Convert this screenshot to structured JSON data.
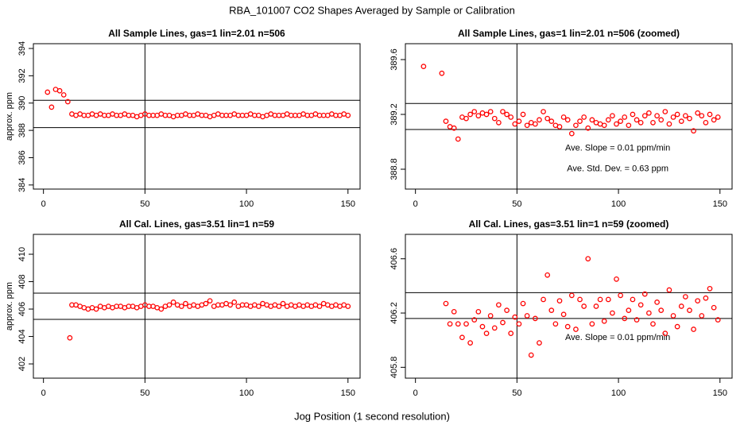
{
  "title": "RBA_101007  CO2 Shapes Averaged by Sample or Calibration",
  "xlabel": "Jog Position (1 second resolution)",
  "chart_data": [
    {
      "type": "scatter",
      "title": "All Sample Lines, gas=1 lin=2.01 n=506",
      "ylabel": "approx. ppm",
      "color": "#ff0000",
      "xlim": [
        -4.96,
        155.96
      ],
      "xticks": [
        0,
        50,
        100,
        150
      ],
      "ylim": [
        383.7,
        394.35
      ],
      "yticks": [
        384,
        386,
        388,
        390,
        392,
        394
      ],
      "hlines": [
        390.2,
        388.2
      ],
      "vline": 50,
      "x": [
        2,
        4,
        6,
        8,
        10,
        12,
        14,
        16,
        18,
        20,
        22,
        24,
        26,
        28,
        30,
        32,
        34,
        36,
        38,
        40,
        42,
        44,
        46,
        48,
        50,
        52,
        54,
        56,
        58,
        60,
        62,
        64,
        66,
        68,
        70,
        72,
        74,
        76,
        78,
        80,
        82,
        84,
        86,
        88,
        90,
        92,
        94,
        96,
        98,
        100,
        102,
        104,
        106,
        108,
        110,
        112,
        114,
        116,
        118,
        120,
        122,
        124,
        126,
        128,
        130,
        132,
        134,
        136,
        138,
        140,
        142,
        144,
        146,
        148,
        150
      ],
      "values": [
        390.8,
        389.7,
        391.0,
        390.9,
        390.6,
        390.1,
        389.2,
        389.1,
        389.2,
        389.1,
        389.1,
        389.2,
        389.1,
        389.2,
        389.1,
        389.1,
        389.2,
        389.1,
        389.1,
        389.2,
        389.1,
        389.1,
        389.0,
        389.1,
        389.2,
        389.1,
        389.1,
        389.1,
        389.2,
        389.1,
        389.1,
        389.0,
        389.1,
        389.1,
        389.2,
        389.1,
        389.1,
        389.2,
        389.1,
        389.1,
        389.0,
        389.1,
        389.2,
        389.1,
        389.1,
        389.1,
        389.2,
        389.1,
        389.1,
        389.1,
        389.2,
        389.1,
        389.1,
        389.0,
        389.1,
        389.2,
        389.1,
        389.1,
        389.1,
        389.2,
        389.1,
        389.1,
        389.1,
        389.2,
        389.1,
        389.1,
        389.2,
        389.1,
        389.1,
        389.1,
        389.2,
        389.1,
        389.1,
        389.2,
        389.1
      ]
    },
    {
      "type": "scatter",
      "title": "All Sample Lines, gas=1 lin=2.01 n=506 (zoomed)",
      "color": "#ff0000",
      "xlim": [
        -4.96,
        155.96
      ],
      "xticks": [
        0,
        50,
        100,
        150
      ],
      "ylim": [
        388.655,
        389.716
      ],
      "yticks": [
        388.8,
        389.2,
        389.6
      ],
      "hlines": [
        389.28,
        389.09
      ],
      "vline": 50,
      "annotations": [
        "Ave. Slope =  0.01  ppm/min",
        "Ave. Std. Dev. =  0.63  ppm"
      ],
      "x": [
        4,
        13,
        15,
        17,
        19,
        21,
        23,
        25,
        27,
        29,
        31,
        33,
        35,
        37,
        39,
        41,
        43,
        45,
        47,
        49,
        51,
        53,
        55,
        57,
        59,
        61,
        63,
        65,
        67,
        69,
        71,
        73,
        75,
        77,
        79,
        81,
        83,
        85,
        87,
        89,
        91,
        93,
        95,
        97,
        99,
        101,
        103,
        105,
        107,
        109,
        111,
        113,
        115,
        117,
        119,
        121,
        123,
        125,
        127,
        129,
        131,
        133,
        135,
        137,
        139,
        141,
        143,
        145,
        147,
        149
      ],
      "values": [
        389.55,
        389.5,
        389.15,
        389.11,
        389.1,
        389.02,
        389.18,
        389.17,
        389.2,
        389.22,
        389.19,
        389.21,
        389.2,
        389.22,
        389.17,
        389.14,
        389.22,
        389.2,
        389.18,
        389.13,
        389.15,
        389.2,
        389.12,
        389.14,
        389.13,
        389.16,
        389.22,
        389.17,
        389.15,
        389.12,
        389.11,
        389.18,
        389.16,
        389.06,
        389.12,
        389.15,
        389.18,
        389.1,
        389.16,
        389.14,
        389.13,
        389.12,
        389.16,
        389.19,
        389.13,
        389.15,
        389.18,
        389.12,
        389.2,
        389.16,
        389.14,
        389.19,
        389.21,
        389.14,
        389.19,
        389.16,
        389.22,
        389.13,
        389.18,
        389.2,
        389.15,
        389.19,
        389.17,
        389.08,
        389.21,
        389.19,
        389.14,
        389.2,
        389.16,
        389.18
      ]
    },
    {
      "type": "scatter",
      "title": "All Cal. Lines, gas=3.51 lin=1 n=59",
      "ylabel": "approx. ppm",
      "color": "#ff0000",
      "xlim": [
        -4.96,
        155.96
      ],
      "xticks": [
        0,
        50,
        100,
        150
      ],
      "ylim": [
        400.96,
        411.45
      ],
      "yticks": [
        402,
        404,
        406,
        408,
        410
      ],
      "hlines": [
        407.16,
        405.25
      ],
      "vline": 50,
      "x": [
        13,
        14,
        16,
        18,
        20,
        22,
        24,
        26,
        28,
        30,
        32,
        34,
        36,
        38,
        40,
        42,
        44,
        46,
        48,
        50,
        52,
        54,
        56,
        58,
        60,
        62,
        64,
        66,
        68,
        70,
        72,
        74,
        76,
        78,
        80,
        82,
        84,
        86,
        88,
        90,
        92,
        94,
        96,
        98,
        100,
        102,
        104,
        106,
        108,
        110,
        112,
        114,
        116,
        118,
        120,
        122,
        124,
        126,
        128,
        130,
        132,
        134,
        136,
        138,
        140,
        142,
        144,
        146,
        148,
        150
      ],
      "values": [
        403.9,
        406.3,
        406.3,
        406.2,
        406.1,
        406.0,
        406.1,
        406.0,
        406.2,
        406.1,
        406.2,
        406.1,
        406.2,
        406.2,
        406.1,
        406.2,
        406.2,
        406.1,
        406.2,
        406.3,
        406.2,
        406.2,
        406.1,
        406.0,
        406.2,
        406.3,
        406.5,
        406.3,
        406.2,
        406.4,
        406.2,
        406.3,
        406.2,
        406.3,
        406.4,
        406.6,
        406.2,
        406.3,
        406.3,
        406.4,
        406.3,
        406.5,
        406.2,
        406.3,
        406.3,
        406.2,
        406.3,
        406.2,
        406.4,
        406.3,
        406.2,
        406.3,
        406.2,
        406.4,
        406.2,
        406.3,
        406.2,
        406.3,
        406.2,
        406.3,
        406.2,
        406.3,
        406.2,
        406.4,
        406.3,
        406.2,
        406.3,
        406.2,
        406.3,
        406.2
      ]
    },
    {
      "type": "scatter",
      "title": "All Cal. Lines, gas=3.51 lin=1 n=59 (zoomed)",
      "color": "#ff0000",
      "xlim": [
        -4.96,
        155.96
      ],
      "xticks": [
        0,
        50,
        100,
        150
      ],
      "ylim": [
        405.72,
        406.78
      ],
      "yticks": [
        405.8,
        406.2,
        406.6
      ],
      "hlines": [
        406.35,
        406.16
      ],
      "vline": 50,
      "annotations": [
        "Ave. Slope =  0.01  ppm/min"
      ],
      "x": [
        15,
        17,
        19,
        21,
        23,
        25,
        27,
        29,
        31,
        33,
        35,
        37,
        39,
        41,
        43,
        45,
        47,
        49,
        51,
        53,
        55,
        57,
        59,
        61,
        63,
        65,
        67,
        69,
        71,
        73,
        75,
        77,
        79,
        81,
        83,
        85,
        87,
        89,
        91,
        93,
        95,
        97,
        99,
        101,
        103,
        105,
        107,
        109,
        111,
        113,
        115,
        117,
        119,
        121,
        123,
        125,
        127,
        129,
        131,
        133,
        135,
        137,
        139,
        141,
        143,
        145,
        147,
        149
      ],
      "values": [
        406.27,
        406.12,
        406.21,
        406.12,
        406.02,
        406.12,
        405.98,
        406.15,
        406.21,
        406.1,
        406.05,
        406.18,
        406.09,
        406.26,
        406.13,
        406.22,
        406.05,
        406.17,
        406.12,
        406.27,
        406.18,
        405.89,
        406.16,
        405.98,
        406.3,
        406.48,
        406.22,
        406.12,
        406.29,
        406.19,
        406.1,
        406.33,
        406.08,
        406.3,
        406.25,
        406.6,
        406.12,
        406.25,
        406.3,
        406.14,
        406.3,
        406.2,
        406.45,
        406.33,
        406.16,
        406.22,
        406.3,
        406.15,
        406.26,
        406.34,
        406.2,
        406.12,
        406.28,
        406.22,
        406.05,
        406.37,
        406.18,
        406.1,
        406.25,
        406.32,
        406.22,
        406.08,
        406.29,
        406.18,
        406.31,
        406.38,
        406.24,
        406.15
      ]
    }
  ]
}
